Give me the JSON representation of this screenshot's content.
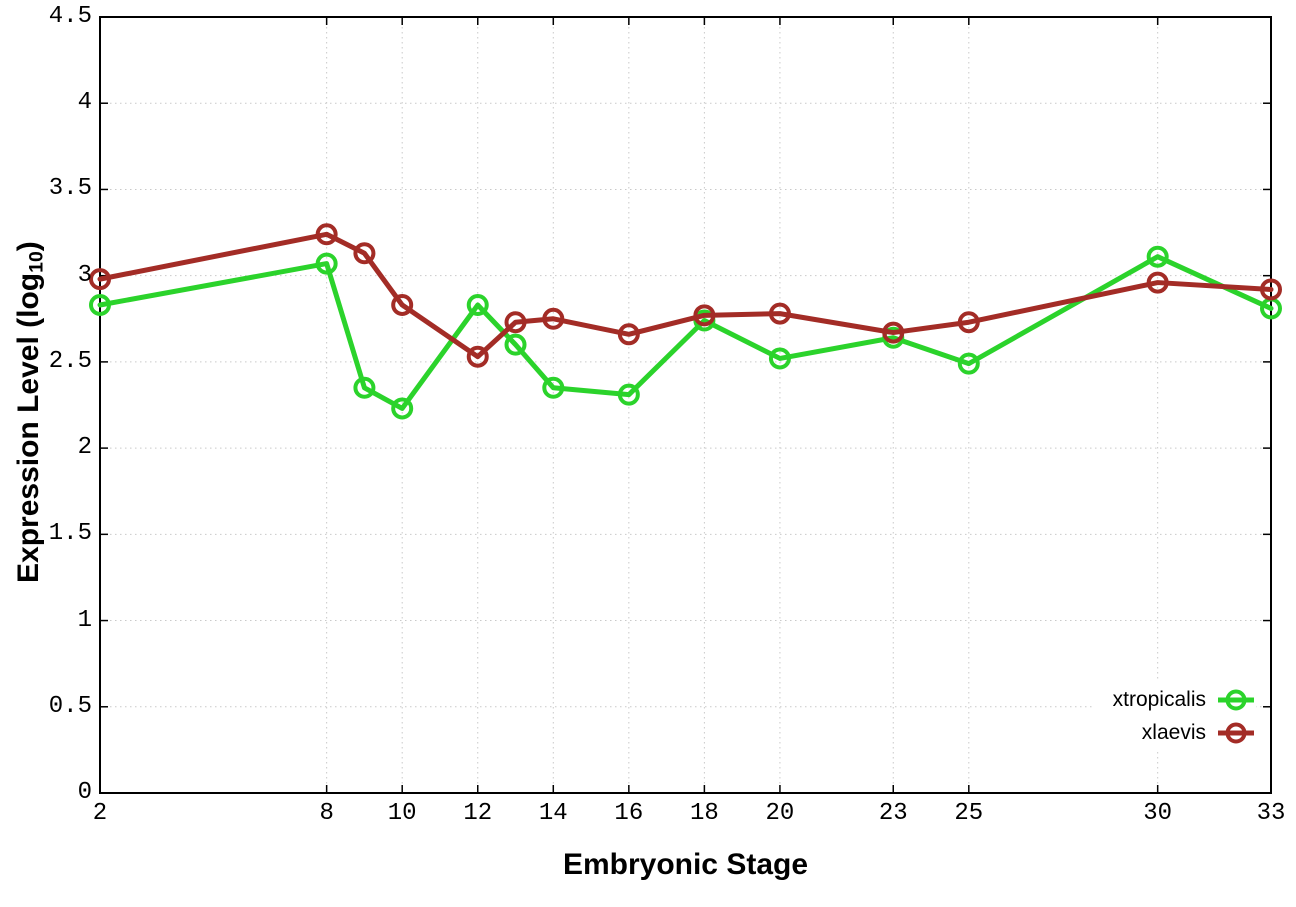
{
  "chart_data": {
    "type": "line",
    "title": "",
    "xlabel": "Embryonic Stage",
    "ylabel": "Expression Level (log10)",
    "ylabel_parts": {
      "prefix": "Expression Level (log",
      "sub": "10",
      "suffix": ")"
    },
    "x": [
      2,
      8,
      9,
      10,
      12,
      13,
      14,
      16,
      18,
      20,
      23,
      25,
      30,
      33
    ],
    "series": [
      {
        "name": "xtropicalis",
        "color": "#2bd32b",
        "marker": "open-circle",
        "values": [
          2.83,
          3.07,
          2.35,
          2.23,
          2.83,
          2.6,
          2.35,
          2.31,
          2.74,
          2.52,
          2.64,
          2.49,
          3.11,
          2.81
        ]
      },
      {
        "name": "xlaevis",
        "color": "#a32c26",
        "marker": "open-circle",
        "values": [
          2.98,
          3.24,
          3.13,
          2.83,
          2.53,
          2.73,
          2.75,
          2.66,
          2.77,
          2.78,
          2.67,
          2.73,
          2.96,
          2.92
        ]
      }
    ],
    "xticks": [
      2,
      8,
      10,
      12,
      14,
      16,
      18,
      20,
      23,
      25,
      30,
      33
    ],
    "yticks": [
      "0",
      "0.5",
      "1",
      "1.5",
      "2",
      "2.5",
      "3",
      "3.5",
      "4",
      "4.5"
    ],
    "xlim": [
      2,
      33
    ],
    "ylim": [
      0,
      4.5
    ],
    "grid": true,
    "grid_style": "dotted",
    "legend_position": "bottom-right",
    "colors": {
      "background": "#ffffff",
      "axis": "#000000",
      "grid": "#c9c9c9",
      "tick_text": "#000000"
    }
  }
}
